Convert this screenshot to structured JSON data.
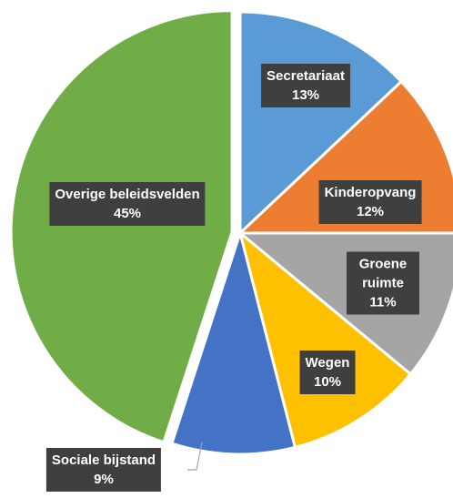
{
  "chart_data": {
    "type": "pie",
    "categories": [
      "Secretariaat",
      "Kinderopvang",
      "Groene ruimte",
      "Wegen",
      "Sociale bijstand",
      "Overige beleidsvelden"
    ],
    "values": [
      13,
      12,
      11,
      10,
      9,
      45
    ],
    "value_labels": [
      "13%",
      "12%",
      "11%",
      "10%",
      "9%",
      "45%"
    ],
    "colors": [
      "#5b9bd5",
      "#ed7d31",
      "#a5a5a5",
      "#ffc000",
      "#4472c4",
      "#70ad47"
    ]
  }
}
